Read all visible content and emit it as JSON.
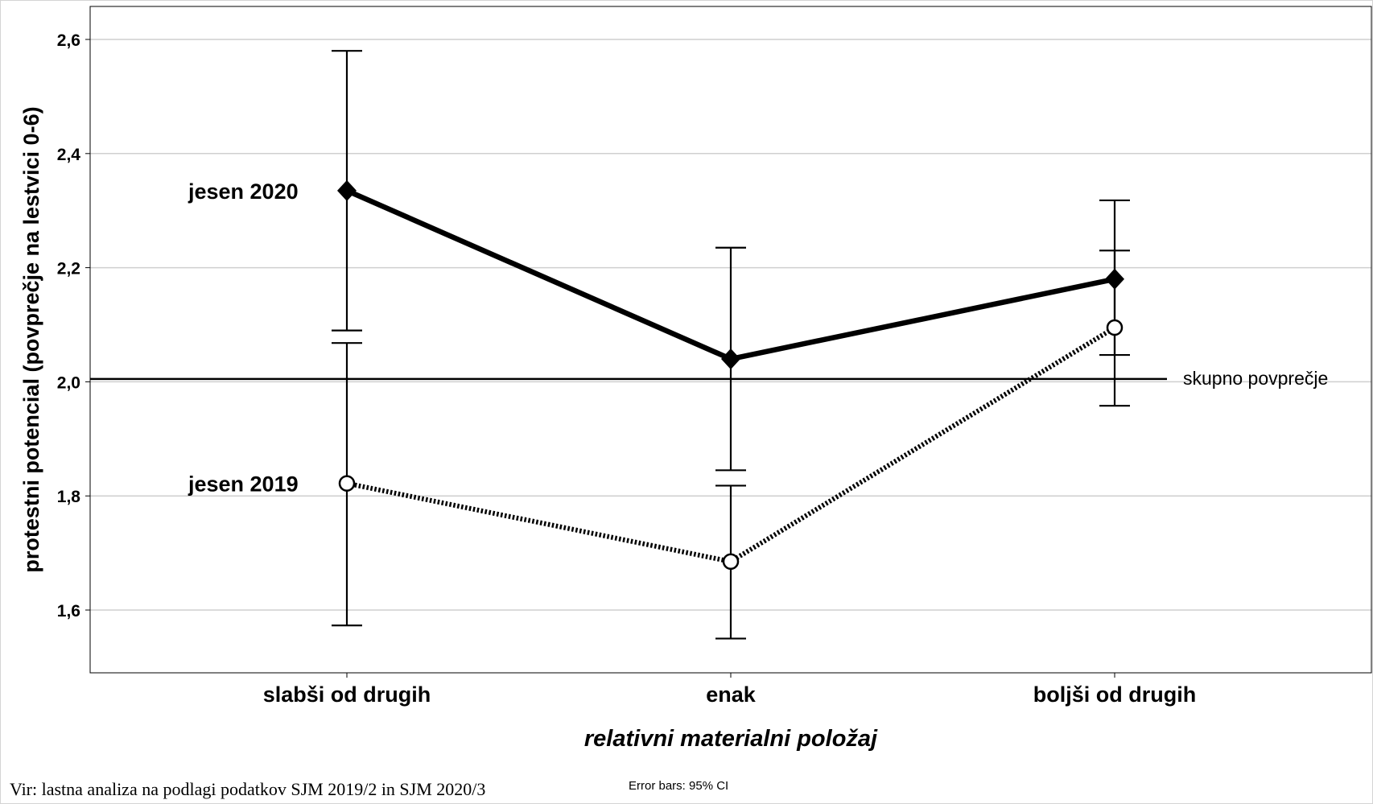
{
  "chart_data": {
    "type": "line",
    "categories": [
      "slabši od drugih",
      "enak",
      "boljši od drugih"
    ],
    "xlabel": "relativni materialni položaj",
    "ylabel": "protestni potencial (povprečje na lestvici 0-6)",
    "ylim": [
      1.495,
      2.605
    ],
    "yticks": [
      "1,6",
      "1,8",
      "2,0",
      "2,2",
      "2,4",
      "2,6"
    ],
    "ytick_values": [
      1.6,
      1.8,
      2.0,
      2.2,
      2.4,
      2.6
    ],
    "grid": true,
    "series": [
      {
        "name": "jesen 2020",
        "values": [
          2.335,
          2.04,
          2.18
        ],
        "ci_low": [
          2.09,
          1.845,
          2.047
        ],
        "ci_high": [
          2.58,
          2.235,
          2.318
        ],
        "style": "solid",
        "marker": "diamond",
        "color": "#000000"
      },
      {
        "name": "jesen 2019",
        "values": [
          1.822,
          1.685,
          2.095
        ],
        "ci_low": [
          1.573,
          1.55,
          1.958
        ],
        "ci_high": [
          2.068,
          1.818,
          2.23
        ],
        "style": "dotted",
        "marker": "open-circle",
        "color": "#000000"
      }
    ],
    "reference_line": {
      "label": "skupno povprečje",
      "value": 2.005
    },
    "error_bars_note": "Error bars: 95% CI"
  },
  "footer": {
    "source": "Vir: lastna analiza na podlagi podatkov SJM 2019/2 in SJM 2020/3"
  }
}
